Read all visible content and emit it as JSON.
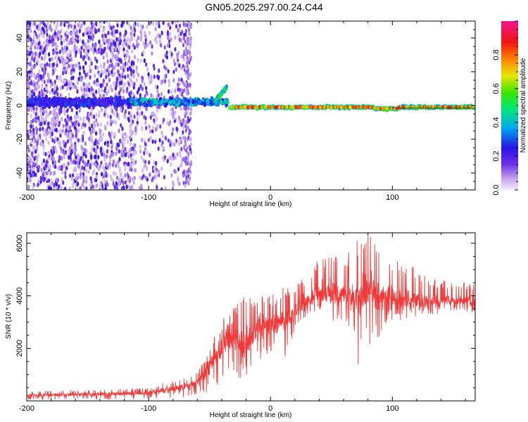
{
  "title": "GN05.2025.297.00.24.C44",
  "chart_data": [
    {
      "type": "heatmap",
      "name": "spectrogram",
      "xlabel": "Height of straight line (km)",
      "ylabel": "Frequency (Hz)",
      "xlim": [
        -200,
        168
      ],
      "ylim": [
        -50,
        50
      ],
      "xticks": [
        -200,
        -100,
        0,
        100
      ],
      "xtick_labels": [
        "-200",
        "-100",
        "0",
        "100"
      ],
      "yticks": [
        -40,
        -20,
        0,
        20,
        40
      ],
      "ytick_labels": [
        "-40",
        "-20",
        "0",
        "20",
        "40"
      ],
      "colorbar": {
        "label": "Normalized spectral amplitude",
        "range": [
          0,
          1
        ],
        "ticks": [
          0.0,
          0.2,
          0.4,
          0.6,
          0.8
        ],
        "tick_labels": [
          "0.0",
          "0.2",
          "0.4",
          "0.6",
          "0.8"
        ],
        "colormap": "rainbow (purple-blue-cyan-green-yellow-red-magenta)"
      },
      "features": [
        {
          "description": "diffuse low-amplitude noise across all frequencies",
          "x_range": [
            -200,
            -65
          ],
          "amplitude": 0.1
        },
        {
          "description": "emerging signal near 0 Hz",
          "x_range": [
            -115,
            -35
          ],
          "freq_hz": 3,
          "amplitude": 0.35
        },
        {
          "description": "signal hook rising toward 10 Hz",
          "x_range": [
            -45,
            -35
          ],
          "freq_hz": [
            2,
            11
          ],
          "amplitude": 0.45
        },
        {
          "description": "strong narrow-band line slightly below 0 Hz",
          "x_range": [
            -33,
            168
          ],
          "freq_hz": -1,
          "amplitude": 0.9
        }
      ]
    },
    {
      "type": "line",
      "name": "snr",
      "xlabel": "Height of straight line (km)",
      "ylabel": "SNR (10 * v/v)",
      "xlim": [
        -200,
        168
      ],
      "ylim": [
        0,
        6400
      ],
      "xticks": [
        -200,
        -100,
        0,
        100
      ],
      "xtick_labels": [
        "-200",
        "-100",
        "0",
        "100"
      ],
      "yticks": [
        2000,
        4000,
        6000
      ],
      "ytick_labels": [
        "2000",
        "4000",
        "6000"
      ],
      "color": "#f03a3a",
      "envelope": [
        {
          "x": -200,
          "low": 50,
          "mid": 200,
          "high": 350
        },
        {
          "x": -150,
          "low": 60,
          "mid": 250,
          "high": 420
        },
        {
          "x": -100,
          "low": 70,
          "mid": 300,
          "high": 500
        },
        {
          "x": -75,
          "low": 120,
          "mid": 500,
          "high": 850
        },
        {
          "x": -60,
          "low": 150,
          "mid": 700,
          "high": 1100
        },
        {
          "x": -50,
          "low": 300,
          "mid": 1300,
          "high": 2000
        },
        {
          "x": -40,
          "low": 700,
          "mid": 2000,
          "high": 3100
        },
        {
          "x": -30,
          "low": 900,
          "mid": 2500,
          "high": 3600
        },
        {
          "x": -22,
          "low": 700,
          "mid": 2000,
          "high": 3900
        },
        {
          "x": -10,
          "low": 1500,
          "mid": 2800,
          "high": 4000
        },
        {
          "x": 0,
          "low": 1800,
          "mid": 2900,
          "high": 4000
        },
        {
          "x": 10,
          "low": 1900,
          "mid": 3000,
          "high": 4300
        },
        {
          "x": 20,
          "low": 2500,
          "mid": 3400,
          "high": 4400
        },
        {
          "x": 30,
          "low": 3300,
          "mid": 3800,
          "high": 4800
        },
        {
          "x": 40,
          "low": 3500,
          "mid": 4100,
          "high": 5500
        },
        {
          "x": 50,
          "low": 3000,
          "mid": 4100,
          "high": 5600
        },
        {
          "x": 60,
          "low": 3000,
          "mid": 4000,
          "high": 5700
        },
        {
          "x": 70,
          "low": 2500,
          "mid": 3900,
          "high": 6200
        },
        {
          "x": 80,
          "low": 2000,
          "mid": 4200,
          "high": 6400
        },
        {
          "x": 90,
          "low": 2500,
          "mid": 4000,
          "high": 6100
        },
        {
          "x": 100,
          "low": 3000,
          "mid": 3900,
          "high": 5400
        },
        {
          "x": 115,
          "low": 3200,
          "mid": 3800,
          "high": 5200
        },
        {
          "x": 130,
          "low": 3300,
          "mid": 3800,
          "high": 4700
        },
        {
          "x": 150,
          "low": 3400,
          "mid": 3800,
          "high": 4500
        },
        {
          "x": 168,
          "low": 3300,
          "mid": 3800,
          "high": 4500
        }
      ],
      "noteworthy_points": [
        {
          "x": -22,
          "y": 3950
        },
        {
          "x": 12,
          "y": 1700
        },
        {
          "x": 72,
          "y": 1400
        },
        {
          "x": 80,
          "y": 6400
        }
      ]
    }
  ]
}
